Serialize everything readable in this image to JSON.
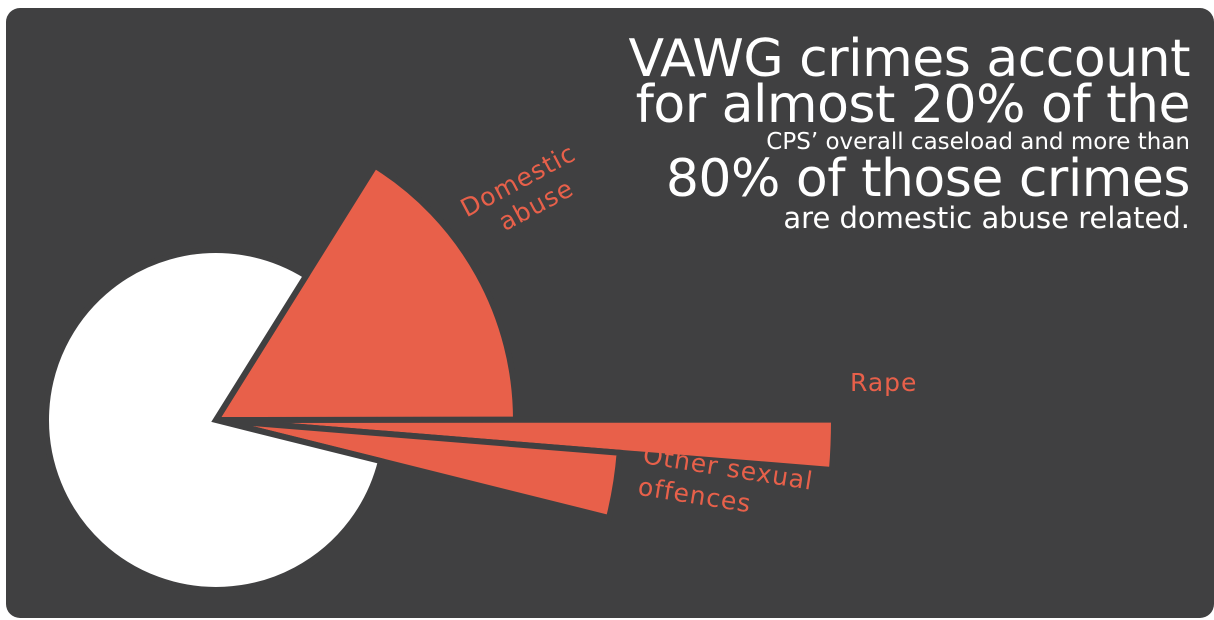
{
  "colors": {
    "background": "#404041",
    "accent": "#e8604a",
    "remainder": "#ffffff",
    "headline": "#ffffff"
  },
  "headline": {
    "line1": "VAWG crimes account",
    "line2": "for almost 20% of the",
    "line3": "CPS’ overall caseload and more than",
    "line4": "80% of those crimes",
    "line5": "are domestic abuse related."
  },
  "chart_data": {
    "type": "pie",
    "title": "",
    "slices": [
      {
        "label": "Domestic abuse",
        "value": 16.1,
        "exploded": true
      },
      {
        "label": "Rape",
        "value": 1.3,
        "exploded": true
      },
      {
        "label": "Other sexual offences",
        "value": 2.6,
        "exploded": true
      },
      {
        "label": "",
        "value": 80.0,
        "exploded": false
      }
    ]
  }
}
